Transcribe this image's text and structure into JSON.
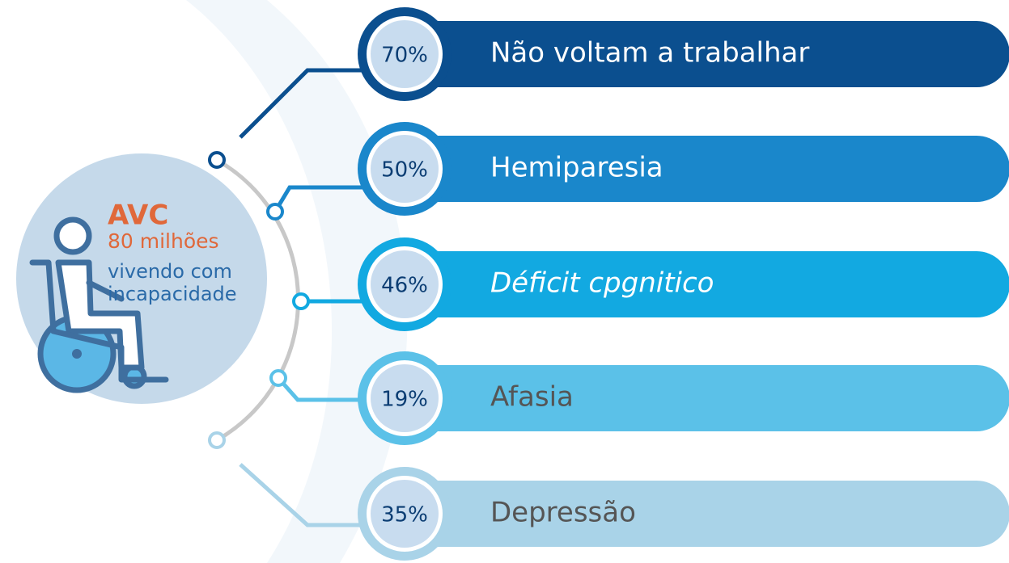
{
  "center": {
    "title": "AVC",
    "count": "80 milhões",
    "line1": "vivendo com",
    "line2": "incapacidade"
  },
  "items": [
    {
      "percent": "70%",
      "label": "Não voltam a trabalhar"
    },
    {
      "percent": "50%",
      "label": "Hemiparesia"
    },
    {
      "percent": "46%",
      "label": "Déficit cpgnitico"
    },
    {
      "percent": "19%",
      "label": "Afasia"
    },
    {
      "percent": "35%",
      "label": "Depressão"
    }
  ]
}
